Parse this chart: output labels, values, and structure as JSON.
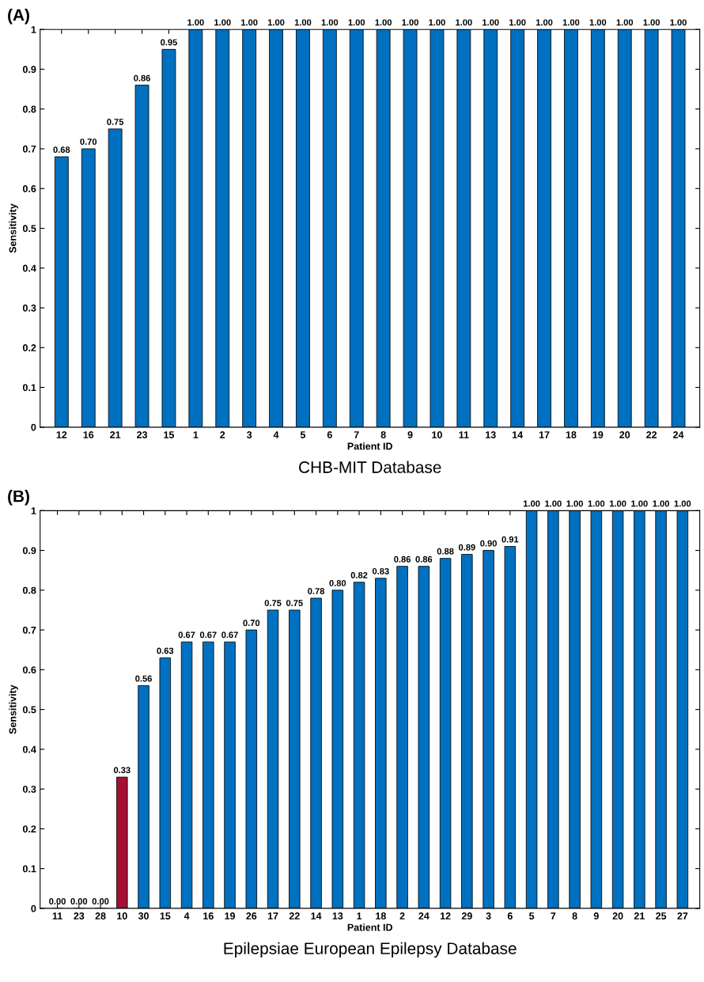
{
  "chart_data": [
    {
      "type": "bar",
      "title": "(A)",
      "xlabel": "Patient ID",
      "ylabel": "Sensitivity",
      "annotations": [
        "CHB-MIT Database"
      ],
      "categories": [
        "12",
        "16",
        "21",
        "23",
        "15",
        "1",
        "2",
        "3",
        "4",
        "5",
        "6",
        "7",
        "8",
        "9",
        "10",
        "11",
        "13",
        "14",
        "17",
        "18",
        "19",
        "20",
        "22",
        "24"
      ],
      "values": [
        0.68,
        0.7,
        0.75,
        0.86,
        0.95,
        1,
        1,
        1,
        1,
        1,
        1,
        1,
        1,
        1,
        1,
        1,
        1,
        1,
        1,
        1,
        1,
        1,
        1,
        1
      ],
      "value_labels": [
        "0.68",
        "0.70",
        "0.75",
        "0.86",
        "0.95",
        "1.00",
        "1.00",
        "1.00",
        "1.00",
        "1.00",
        "1.00",
        "1.00",
        "1.00",
        "1.00",
        "1.00",
        "1.00",
        "1.00",
        "1.00",
        "1.00",
        "1.00",
        "1.00",
        "1.00",
        "1.00",
        "1.00"
      ],
      "color": "#0070c0",
      "ylim": [
        0,
        1
      ],
      "yticks": [
        0,
        0.1,
        0.2,
        0.3,
        0.4,
        0.5,
        0.6,
        0.7,
        0.8,
        0.9,
        1
      ]
    },
    {
      "type": "bar",
      "title": "(B)",
      "xlabel": "Patient ID",
      "ylabel": "Sensitivity",
      "annotations": [
        "Epilepsiae European Epilepsy Database"
      ],
      "categories": [
        "11",
        "23",
        "28",
        "10",
        "30",
        "15",
        "4",
        "16",
        "19",
        "26",
        "17",
        "22",
        "14",
        "13",
        "1",
        "18",
        "2",
        "24",
        "12",
        "29",
        "3",
        "6",
        "5",
        "7",
        "8",
        "9",
        "20",
        "21",
        "25",
        "27"
      ],
      "values": [
        0,
        0,
        0,
        0.33,
        0.56,
        0.63,
        0.67,
        0.67,
        0.67,
        0.7,
        0.75,
        0.75,
        0.78,
        0.8,
        0.82,
        0.83,
        0.86,
        0.86,
        0.88,
        0.89,
        0.9,
        0.91,
        1,
        1,
        1,
        1,
        1,
        1,
        1,
        1
      ],
      "value_labels": [
        "0.00",
        "0.00",
        "0.00",
        "0.33",
        "0.56",
        "0.63",
        "0.67",
        "0.67",
        "0.67",
        "0.70",
        "0.75",
        "0.75",
        "0.78",
        "0.80",
        "0.82",
        "0.83",
        "0.86",
        "0.86",
        "0.88",
        "0.89",
        "0.90",
        "0.91",
        "1.00",
        "1.00",
        "1.00",
        "1.00",
        "1.00",
        "1.00",
        "1.00",
        "1.00"
      ],
      "colors": [
        "#0070c0",
        "#0070c0",
        "#0070c0",
        "#a50f33",
        "#0070c0",
        "#0070c0",
        "#0070c0",
        "#0070c0",
        "#0070c0",
        "#0070c0",
        "#0070c0",
        "#0070c0",
        "#0070c0",
        "#0070c0",
        "#0070c0",
        "#0070c0",
        "#0070c0",
        "#0070c0",
        "#0070c0",
        "#0070c0",
        "#0070c0",
        "#0070c0",
        "#0070c0",
        "#0070c0",
        "#0070c0",
        "#0070c0",
        "#0070c0",
        "#0070c0",
        "#0070c0",
        "#0070c0"
      ],
      "ylim": [
        0,
        1
      ],
      "yticks": [
        0,
        0.1,
        0.2,
        0.3,
        0.4,
        0.5,
        0.6,
        0.7,
        0.8,
        0.9,
        1
      ]
    }
  ]
}
